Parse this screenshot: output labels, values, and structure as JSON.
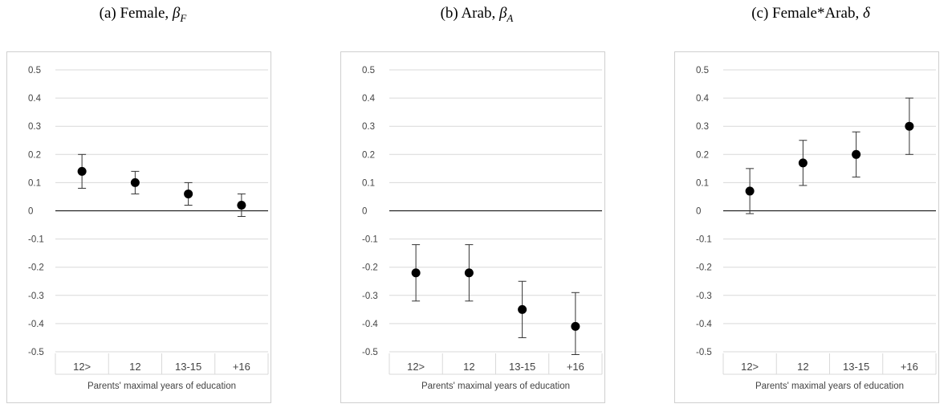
{
  "chart_data": [
    {
      "type": "scatter",
      "title_prefix": "(a) Female, ",
      "symbol": "β",
      "subscript": "F",
      "categories": [
        "12>",
        "12",
        "13-15",
        "+16"
      ],
      "values": [
        0.14,
        0.1,
        0.06,
        0.02
      ],
      "ci_low": [
        0.08,
        0.06,
        0.02,
        -0.02
      ],
      "ci_high": [
        0.2,
        0.14,
        0.1,
        0.06
      ],
      "xlabel": "Parents' maximal years of education",
      "ylim": [
        -0.5,
        0.5
      ],
      "yticks": [
        "0.5",
        "0.4",
        "0.3",
        "0.2",
        "0.1",
        "0",
        "-0.1",
        "-0.2",
        "-0.3",
        "-0.4",
        "-0.5"
      ],
      "grid": true
    },
    {
      "type": "scatter",
      "title_prefix": "(b) Arab, ",
      "symbol": "β",
      "subscript": "A",
      "categories": [
        "12>",
        "12",
        "13-15",
        "+16"
      ],
      "values": [
        -0.22,
        -0.22,
        -0.35,
        -0.41
      ],
      "ci_low": [
        -0.32,
        -0.32,
        -0.45,
        -0.51
      ],
      "ci_high": [
        -0.12,
        -0.12,
        -0.25,
        -0.29
      ],
      "xlabel": "Parents' maximal years of education",
      "ylim": [
        -0.5,
        0.5
      ],
      "yticks": [
        "0.5",
        "0.4",
        "0.3",
        "0.2",
        "0.1",
        "0",
        "-0.1",
        "-0.2",
        "-0.3",
        "-0.4",
        "-0.5"
      ],
      "grid": true
    },
    {
      "type": "scatter",
      "title_prefix": "(c) Female*Arab, ",
      "symbol": "δ",
      "subscript": "",
      "categories": [
        "12>",
        "12",
        "13-15",
        "+16"
      ],
      "values": [
        0.07,
        0.17,
        0.2,
        0.3
      ],
      "ci_low": [
        -0.01,
        0.09,
        0.12,
        0.2
      ],
      "ci_high": [
        0.15,
        0.25,
        0.28,
        0.4
      ],
      "xlabel": "Parents' maximal years of education",
      "ylim": [
        -0.5,
        0.5
      ],
      "yticks": [
        "0.5",
        "0.4",
        "0.3",
        "0.2",
        "0.1",
        "0",
        "-0.1",
        "-0.2",
        "-0.3",
        "-0.4",
        "-0.5"
      ],
      "grid": true
    }
  ]
}
